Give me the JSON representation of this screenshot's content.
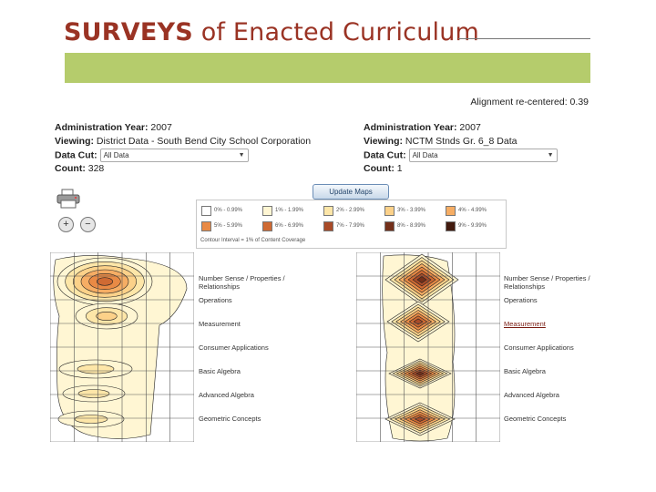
{
  "header": {
    "title_bold": "SURVEYS",
    "title_rest": " of Enacted Curriculum",
    "band_color": "#b5cc6c",
    "alignment_text": "Alignment re-centered: 0.39"
  },
  "panels": {
    "left": {
      "admin_label": "Administration Year:",
      "admin_value": "2007",
      "viewing_label": "Viewing:",
      "viewing_value": "District Data - South Bend City School Corporation",
      "datacut_label": "Data Cut:",
      "datacut_value": "All Data",
      "count_label": "Count:",
      "count_value": "328"
    },
    "right": {
      "admin_label": "Administration Year:",
      "admin_value": "2007",
      "viewing_label": "Viewing:",
      "viewing_value": "NCTM Stnds Gr. 6_8 Data",
      "datacut_label": "Data Cut:",
      "datacut_value": "All Data",
      "count_label": "Count:",
      "count_value": "1"
    }
  },
  "tools": {
    "print_icon": "printer-icon",
    "zoom_in": "+",
    "zoom_out": "−",
    "update_label": "Update Maps"
  },
  "legend": {
    "items": [
      {
        "label": "0% - 0.99%",
        "color": "#ffffff"
      },
      {
        "label": "1% - 1.99%",
        "color": "#fff6d3"
      },
      {
        "label": "2% - 2.99%",
        "color": "#fde6a8"
      },
      {
        "label": "3% - 3.99%",
        "color": "#fcd189"
      },
      {
        "label": "4% - 4.99%",
        "color": "#f6ad64"
      },
      {
        "label": "5% - 5.99%",
        "color": "#e98a45"
      },
      {
        "label": "6% - 6.99%",
        "color": "#cf6a33"
      },
      {
        "label": "7% - 7.99%",
        "color": "#a94b28"
      },
      {
        "label": "8% - 8.99%",
        "color": "#74301a"
      },
      {
        "label": "9% - 9.99%",
        "color": "#421a0e"
      }
    ],
    "note": "Contour Interval = 1% of Content Coverage"
  },
  "topics": [
    {
      "label": "Number Sense / Properties / Relationships"
    },
    {
      "label": "Operations"
    },
    {
      "label": "Measurement"
    },
    {
      "label": "Consumer Applications"
    },
    {
      "label": "Basic Algebra"
    },
    {
      "label": "Advanced Algebra"
    },
    {
      "label": "Geometric Concepts"
    }
  ]
}
